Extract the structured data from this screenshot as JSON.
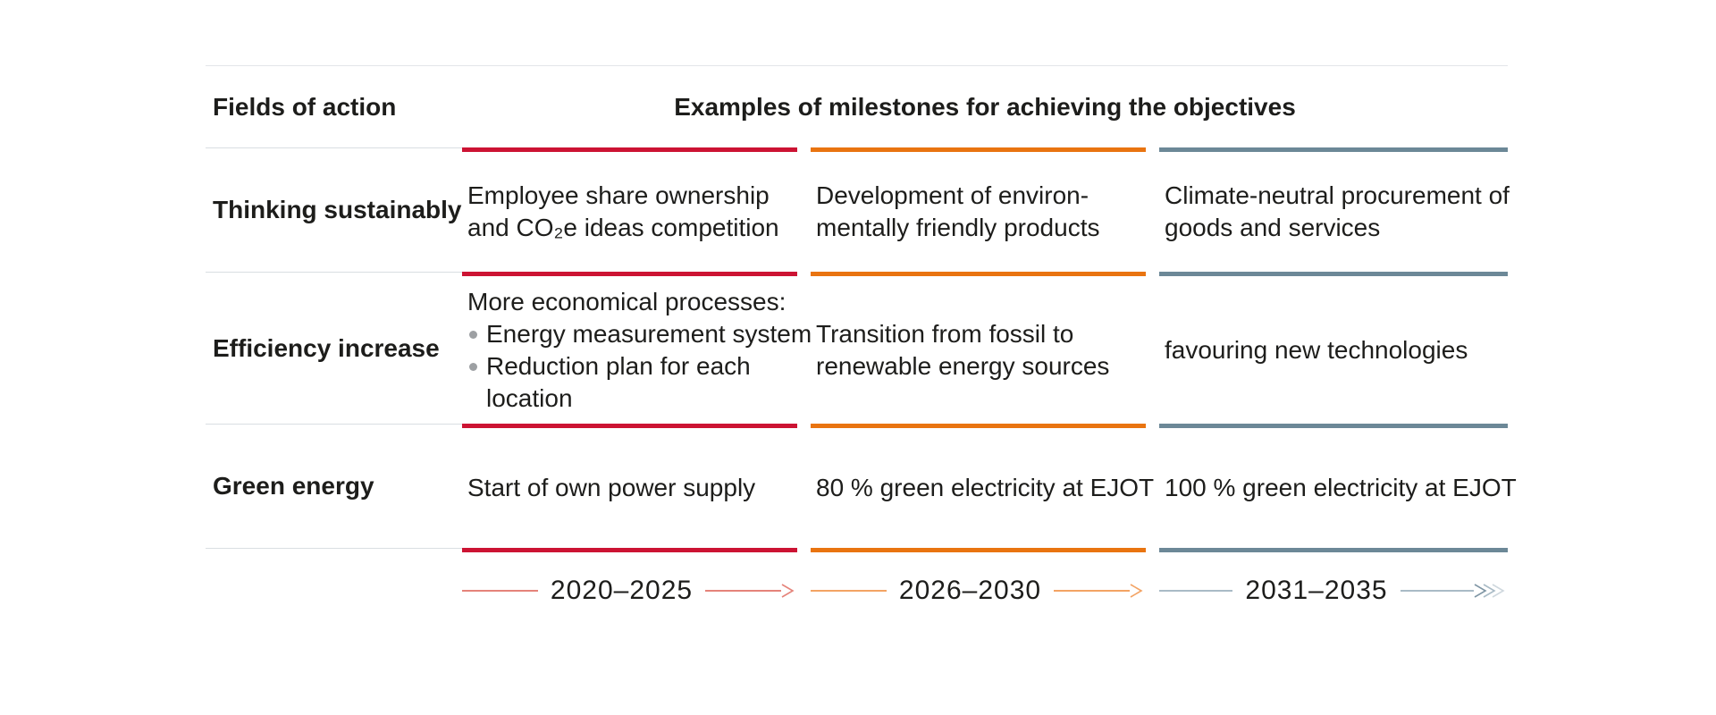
{
  "table": {
    "header": {
      "fields_label": "Fields of action",
      "milestones_label": "Examples of milestones for achieving the objectives"
    },
    "columns": [
      {
        "period": "2020–2025",
        "bar_color": "#cc1333",
        "arrow_color": "#e5837a"
      },
      {
        "period": "2026–2030",
        "bar_color": "#e97410",
        "arrow_color": "#f3a364"
      },
      {
        "period": "2031–2035",
        "bar_color": "#6c8897",
        "arrow_color": "#a9bbc6"
      }
    ],
    "fade_chevron_colors": [
      "#7e95a4",
      "#a9bbc6",
      "#cfd8de"
    ],
    "rows": [
      {
        "label": "Thinking sustainably",
        "cells": [
          {
            "lines": [
              "Employee share ownership",
              "and CO₂e ideas competition"
            ]
          },
          {
            "lines": [
              "Development of environ-",
              "mentally friendly products"
            ]
          },
          {
            "lines": [
              "Climate-neutral procurement of",
              "goods and services"
            ]
          }
        ]
      },
      {
        "label": "Efficiency increase",
        "cells": [
          {
            "intro": "More economical processes:",
            "bullets": [
              [
                "Energy measurement system"
              ],
              [
                "Reduction plan for each",
                "location"
              ]
            ]
          },
          {
            "lines": [
              "Transition from fossil to",
              "renewable energy sources"
            ]
          },
          {
            "lines": [
              "favouring new technologies"
            ]
          }
        ]
      },
      {
        "label": "Green energy",
        "cells": [
          {
            "lines": [
              "Start of own power supply"
            ]
          },
          {
            "lines": [
              "80 % green electricity at EJOT"
            ]
          },
          {
            "lines": [
              "100 % green electricity at EJOT"
            ]
          }
        ]
      }
    ]
  }
}
